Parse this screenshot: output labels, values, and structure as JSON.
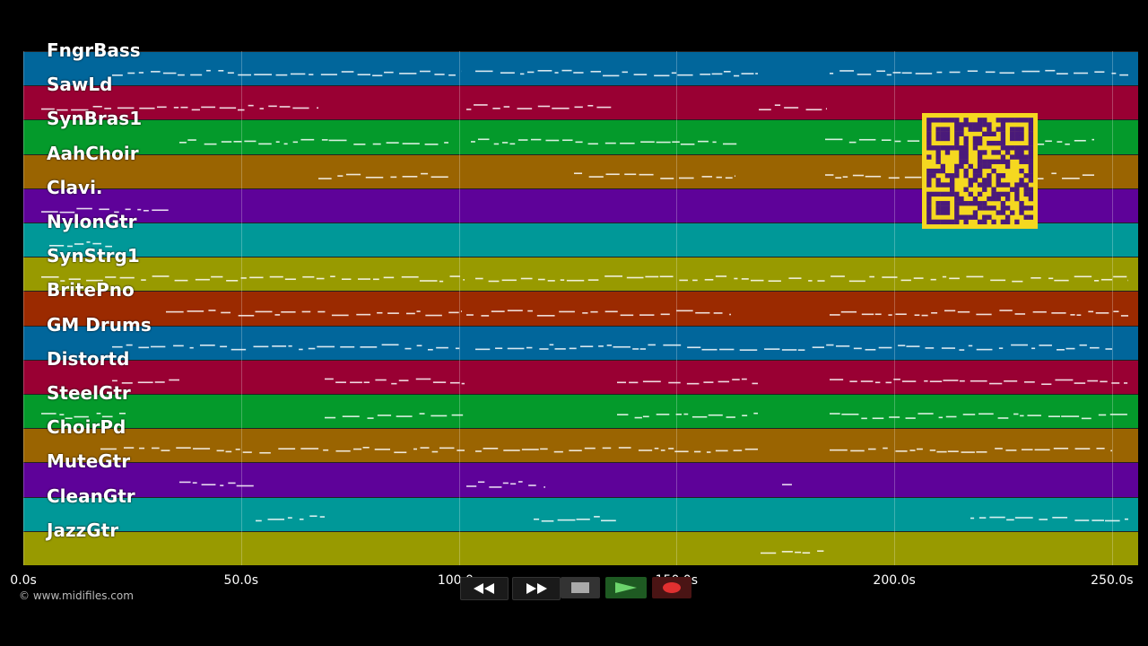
{
  "tracks": [
    {
      "name": "FngrBass",
      "color": "#01669b"
    },
    {
      "name": "SawLd",
      "color": "#990033"
    },
    {
      "name": "SynBras1",
      "color": "#049a2b"
    },
    {
      "name": "AahChoir",
      "color": "#9a6401"
    },
    {
      "name": "Clavi.",
      "color": "#5e0299"
    },
    {
      "name": "NylonGtr",
      "color": "#009898"
    },
    {
      "name": "SynStrg1",
      "color": "#989a00"
    },
    {
      "name": "BritePno",
      "color": "#9b2a00"
    },
    {
      "name": "GM Drums",
      "color": "#01669b"
    },
    {
      "name": "Distortd",
      "color": "#990033"
    },
    {
      "name": "SteelGtr",
      "color": "#049a2b"
    },
    {
      "name": "ChoirPd",
      "color": "#9a6401"
    },
    {
      "name": "MuteGtr",
      "color": "#5e0299"
    },
    {
      "name": "CleanGtr",
      "color": "#009898"
    },
    {
      "name": "JazzGtr",
      "color": "#989a00"
    }
  ],
  "timeline": {
    "ticks": [
      "0.0s",
      "50.0s",
      "100.0s",
      "150.0s",
      "200.0s",
      "250.0s"
    ],
    "tick_values": [
      0,
      50,
      100,
      150,
      200,
      250
    ],
    "max_seconds": 256
  },
  "footer": {
    "copyright": "© www.midifiles.com"
  },
  "transport": {
    "rewind_icon": "rewind-icon",
    "fastforward_icon": "fast-forward-icon",
    "stop_icon": "stop-icon",
    "play_icon": "play-icon",
    "record_icon": "record-icon"
  },
  "colors": {
    "background": "#000000",
    "qr_yellow": "#f5d820",
    "qr_dark": "#4a1a7a"
  }
}
